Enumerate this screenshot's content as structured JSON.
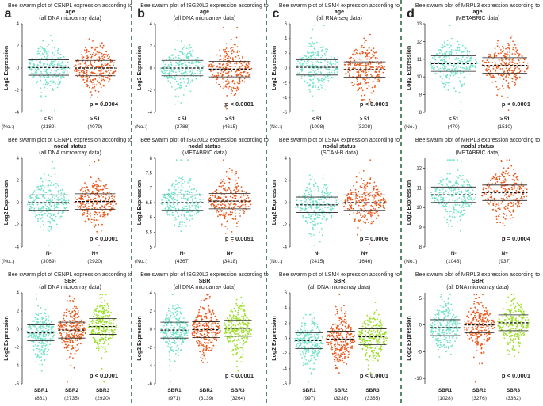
{
  "columns": [
    {
      "letter": "a",
      "panels": [
        {
          "title": [
            "Bee swarm plot of CENPL expression according to",
            "age",
            "(all DNA microarray data)"
          ],
          "ylabel": "Log2 Expression",
          "ylim": [
            -4,
            4
          ],
          "yticks": [
            -4,
            -2,
            0,
            2,
            4
          ],
          "pvalue": "p = 0.0004",
          "groups": [
            {
              "label": "≤ 51",
              "n": "(2189)",
              "color": "#6fe3c8",
              "median": 0.05
            },
            {
              "label": "> 51",
              "n": "(4079)",
              "color": "#ea5a1e",
              "median": 0.0
            }
          ]
        },
        {
          "title": [
            "Bee swarm plot of CENPL expression according to",
            "nodal status",
            "(all DNA microarray data)"
          ],
          "ylabel": "Log2 Expression",
          "ylim": [
            -4,
            4
          ],
          "yticks": [
            -4,
            -2,
            0,
            2,
            4
          ],
          "pvalue": "p < 0.0001",
          "groups": [
            {
              "label": "N-",
              "n": "(3069)",
              "color": "#6fe3c8",
              "median": 0.0
            },
            {
              "label": "N+",
              "n": "(2920)",
              "color": "#ea5a1e",
              "median": 0.1
            }
          ]
        },
        {
          "title": [
            "Bee swarm plot of CENPL expression according to",
            "SBR",
            "(all DNA microarray data)"
          ],
          "ylabel": "Log2 Expression",
          "ylim": [
            -6,
            4
          ],
          "yticks": [
            -6,
            -4,
            -2,
            0,
            2,
            4
          ],
          "pvalue": "p < 0.0001",
          "groups": [
            {
              "label": "SBR1",
              "n": "(861)",
              "color": "#6fe3c8",
              "median": -0.4
            },
            {
              "label": "SBR2",
              "n": "(2735)",
              "color": "#ea5a1e",
              "median": -0.1
            },
            {
              "label": "SBR3",
              "n": "(2920)",
              "color": "#9ee02c",
              "median": 0.3
            }
          ]
        }
      ]
    },
    {
      "letter": "b",
      "panels": [
        {
          "title": [
            "Bee swarm plot of ISG20L2 expression according to",
            "age",
            "(all DNA microarray data)"
          ],
          "ylabel": "Log2 Expression",
          "ylim": [
            -4,
            4
          ],
          "yticks": [
            -4,
            -2,
            0,
            2,
            4
          ],
          "pvalue": "p < 0.0001",
          "groups": [
            {
              "label": "≤ 51",
              "n": "(2788)",
              "color": "#6fe3c8",
              "median": 0.0
            },
            {
              "label": "> 51",
              "n": "(4615)",
              "color": "#ea5a1e",
              "median": -0.1
            }
          ]
        },
        {
          "title": [
            "Bee swarm plot of ISG20L2 expression according to",
            "nodal status",
            "(METABRIC data)"
          ],
          "ylabel": "Log2 Expression",
          "ylim": [
            5.0,
            8.0
          ],
          "yticks": [
            5.0,
            5.5,
            6.0,
            6.5,
            7.0,
            7.5,
            8.0
          ],
          "pvalue": "p = 0.0051",
          "groups": [
            {
              "label": "N-",
              "n": "(4367)",
              "color": "#6fe3c8",
              "median": 6.5
            },
            {
              "label": "N+",
              "n": "(3418)",
              "color": "#ea5a1e",
              "median": 6.55
            }
          ]
        },
        {
          "title": [
            "Bee swarm plot of ISG20L2 expression according to",
            "SBR",
            "(all DNA microarray data)"
          ],
          "ylabel": "Log2 Expression",
          "ylim": [
            -6,
            4
          ],
          "yticks": [
            -6,
            -4,
            -2,
            0,
            2,
            4
          ],
          "pvalue": "p < 0.0001",
          "groups": [
            {
              "label": "SBR1",
              "n": "(971)",
              "color": "#6fe3c8",
              "median": -0.1
            },
            {
              "label": "SBR2",
              "n": "(3139)",
              "color": "#ea5a1e",
              "median": -0.05
            },
            {
              "label": "SBR3",
              "n": "(3264)",
              "color": "#9ee02c",
              "median": 0.1
            }
          ]
        }
      ]
    },
    {
      "letter": "c",
      "panels": [
        {
          "title": [
            "Bee swarm plot of LSM4 expression according to",
            "age",
            "(all RNA-seq data)"
          ],
          "ylabel": "Log2 Expression",
          "ylim": [
            -6,
            6
          ],
          "yticks": [
            -6,
            -4,
            -2,
            0,
            2,
            4,
            6
          ],
          "pvalue": "p < 0.0001",
          "groups": [
            {
              "label": "≤ 51",
              "n": "(1098)",
              "color": "#6fe3c8",
              "median": 0.1
            },
            {
              "label": "> 51",
              "n": "(3208)",
              "color": "#ea5a1e",
              "median": -0.2
            }
          ]
        },
        {
          "title": [
            "Bee swarm plot of LSM4 expression according to",
            "nodal status",
            "(SCAN-B data)"
          ],
          "ylabel": "Log2 Expression",
          "ylim": [
            -4,
            4
          ],
          "yticks": [
            -4,
            -2,
            0,
            2,
            4
          ],
          "pvalue": "p = 0.0006",
          "groups": [
            {
              "label": "N-",
              "n": "(2415)",
              "color": "#6fe3c8",
              "median": -0.2
            },
            {
              "label": "N+",
              "n": "(1646)",
              "color": "#ea5a1e",
              "median": 0.0
            }
          ]
        },
        {
          "title": [
            "Bee swarm plot of LSM4 expression according to",
            "SBR",
            "(all DNA microarray data)"
          ],
          "ylabel": "Log2 Expression",
          "ylim": [
            -6,
            6
          ],
          "yticks": [
            -6,
            -4,
            -2,
            0,
            2,
            4,
            6
          ],
          "pvalue": "p < 0.0001",
          "groups": [
            {
              "label": "SBR1",
              "n": "(997)",
              "color": "#6fe3c8",
              "median": -0.3
            },
            {
              "label": "SBR2",
              "n": "(3238)",
              "color": "#ea5a1e",
              "median": -0.1
            },
            {
              "label": "SBR3",
              "n": "(3365)",
              "color": "#9ee02c",
              "median": 0.2
            }
          ]
        }
      ]
    },
    {
      "letter": "d",
      "panels": [
        {
          "title": [
            "Bee swarm plot of MRPL3 expression according to",
            "age",
            "(METABRIC data)"
          ],
          "ylabel": "Log2 Expression",
          "ylim": [
            8,
            13
          ],
          "yticks": [
            8,
            9,
            10,
            11,
            12,
            13
          ],
          "pvalue": "p < 0.0001",
          "groups": [
            {
              "label": "≤ 51",
              "n": "(470)",
              "color": "#6fe3c8",
              "median": 10.75
            },
            {
              "label": "> 51",
              "n": "(1510)",
              "color": "#ea5a1e",
              "median": 10.65
            }
          ]
        },
        {
          "title": [
            "Bee swarm plot of MRPL3 expression according to",
            "nodal status",
            "(METABRIC data)"
          ],
          "ylabel": "Log2 Expression",
          "ylim": [
            8,
            12.5
          ],
          "yticks": [
            8,
            9,
            10,
            11,
            12
          ],
          "pvalue": "p = 0.0004",
          "groups": [
            {
              "label": "N-",
              "n": "(1043)",
              "color": "#6fe3c8",
              "median": 10.65
            },
            {
              "label": "N+",
              "n": "(937)",
              "color": "#ea5a1e",
              "median": 10.75
            }
          ]
        },
        {
          "title": [
            "Bee swarm plot of MRPL3 expression according to",
            "SBR",
            "(all DNA microarray data)"
          ],
          "ylabel": "Log2 Expression",
          "ylim": [
            -11,
            6
          ],
          "yticks": [
            -10,
            -5,
            0,
            5
          ],
          "pvalue": "p < 0.0001",
          "groups": [
            {
              "label": "SBR1",
              "n": "(1028)",
              "color": "#6fe3c8",
              "median": -0.5
            },
            {
              "label": "SBR2",
              "n": "(3276)",
              "color": "#ea5a1e",
              "median": 0.0
            },
            {
              "label": "SBR3",
              "n": "(3362)",
              "color": "#9ee02c",
              "median": 0.4
            }
          ]
        }
      ]
    }
  ],
  "no_label": "(No.:)",
  "chart_data": {
    "type": "scatter",
    "panels": [
      {
        "gene": "CENPL",
        "by": "age",
        "dataset": "all DNA microarray data",
        "x": [
          "≤ 51",
          "> 51"
        ],
        "n": [
          2189,
          4079
        ],
        "median": [
          0.05,
          0.0
        ],
        "ylim": [
          -4,
          4
        ],
        "p": "p = 0.0004"
      },
      {
        "gene": "CENPL",
        "by": "nodal status",
        "dataset": "all DNA microarray data",
        "x": [
          "N-",
          "N+"
        ],
        "n": [
          3069,
          2920
        ],
        "median": [
          0.0,
          0.1
        ],
        "ylim": [
          -4,
          4
        ],
        "p": "p < 0.0001"
      },
      {
        "gene": "CENPL",
        "by": "SBR",
        "dataset": "all DNA microarray data",
        "x": [
          "SBR1",
          "SBR2",
          "SBR3"
        ],
        "n": [
          861,
          2735,
          2920
        ],
        "median": [
          -0.4,
          -0.1,
          0.3
        ],
        "ylim": [
          -6,
          4
        ],
        "p": "p < 0.0001"
      },
      {
        "gene": "ISG20L2",
        "by": "age",
        "dataset": "all DNA microarray data",
        "x": [
          "≤ 51",
          "> 51"
        ],
        "n": [
          2788,
          4615
        ],
        "median": [
          0.0,
          -0.1
        ],
        "ylim": [
          -4,
          4
        ],
        "p": "p < 0.0001"
      },
      {
        "gene": "ISG20L2",
        "by": "nodal status",
        "dataset": "METABRIC data",
        "x": [
          "N-",
          "N+"
        ],
        "n": [
          4367,
          3418
        ],
        "median": [
          6.5,
          6.55
        ],
        "ylim": [
          5.0,
          8.0
        ],
        "p": "p = 0.0051"
      },
      {
        "gene": "ISG20L2",
        "by": "SBR",
        "dataset": "all DNA microarray data",
        "x": [
          "SBR1",
          "SBR2",
          "SBR3"
        ],
        "n": [
          971,
          3139,
          3264
        ],
        "median": [
          -0.1,
          -0.05,
          0.1
        ],
        "ylim": [
          -6,
          4
        ],
        "p": "p < 0.0001"
      },
      {
        "gene": "LSM4",
        "by": "age",
        "dataset": "all RNA-seq data",
        "x": [
          "≤ 51",
          "> 51"
        ],
        "n": [
          1098,
          3208
        ],
        "median": [
          0.1,
          -0.2
        ],
        "ylim": [
          -6,
          6
        ],
        "p": "p < 0.0001"
      },
      {
        "gene": "LSM4",
        "by": "nodal status",
        "dataset": "SCAN-B data",
        "x": [
          "N-",
          "N+"
        ],
        "n": [
          2415,
          1646
        ],
        "median": [
          -0.2,
          0.0
        ],
        "ylim": [
          -4,
          4
        ],
        "p": "p = 0.0006"
      },
      {
        "gene": "LSM4",
        "by": "SBR",
        "dataset": "all DNA microarray data",
        "x": [
          "SBR1",
          "SBR2",
          "SBR3"
        ],
        "n": [
          997,
          3238,
          3365
        ],
        "median": [
          -0.3,
          -0.1,
          0.2
        ],
        "ylim": [
          -6,
          6
        ],
        "p": "p < 0.0001"
      },
      {
        "gene": "MRPL3",
        "by": "age",
        "dataset": "METABRIC data",
        "x": [
          "≤ 51",
          "> 51"
        ],
        "n": [
          470,
          1510
        ],
        "median": [
          10.75,
          10.65
        ],
        "ylim": [
          8,
          13
        ],
        "p": "p < 0.0001"
      },
      {
        "gene": "MRPL3",
        "by": "nodal status",
        "dataset": "METABRIC data",
        "x": [
          "N-",
          "N+"
        ],
        "n": [
          1043,
          937
        ],
        "median": [
          10.65,
          10.75
        ],
        "ylim": [
          8,
          12.5
        ],
        "p": "p = 0.0004"
      },
      {
        "gene": "MRPL3",
        "by": "SBR",
        "dataset": "all DNA microarray data",
        "x": [
          "SBR1",
          "SBR2",
          "SBR3"
        ],
        "n": [
          1028,
          3276,
          3362
        ],
        "median": [
          -0.5,
          0.0,
          0.4
        ],
        "ylim": [
          -11,
          6
        ],
        "p": "p < 0.0001"
      }
    ]
  }
}
